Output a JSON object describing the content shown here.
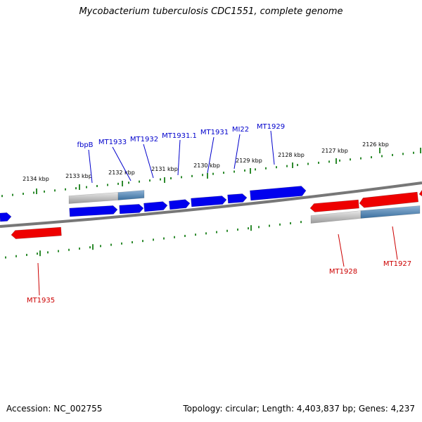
{
  "title": "Mycobacterium tuberculosis CDC1551, complete genome",
  "footer": {
    "accession": "Accession: NC_002755",
    "topology": "Topology: circular; Length: 4,403,837 bp; Genes: 4,237"
  },
  "colors": {
    "forward_gene": "#0000ee",
    "reverse_gene": "#ee0000",
    "tick": "#2e8b2e",
    "backbone": "#777777",
    "label_forward": "#0000cc",
    "label_reverse": "#cc0000"
  },
  "scale": {
    "unit": "kbp",
    "ticks": [
      {
        "kbp": 2126,
        "label": "2126 kbp"
      },
      {
        "kbp": 2127,
        "label": "2127 kbp"
      },
      {
        "kbp": 2128,
        "label": "2128 kbp"
      },
      {
        "kbp": 2129,
        "label": "2129 kbp"
      },
      {
        "kbp": 2130,
        "label": "2130 kbp"
      },
      {
        "kbp": 2131,
        "label": "2131 kbp"
      },
      {
        "kbp": 2132,
        "label": "2132 kbp"
      },
      {
        "kbp": 2133,
        "label": "2133 kbp"
      },
      {
        "kbp": 2134,
        "label": "2134 kbp"
      }
    ]
  },
  "genes_forward": [
    {
      "label": "fbpB"
    },
    {
      "label": "MT1933"
    },
    {
      "label": "MT1932"
    },
    {
      "label": "MT1931.1"
    },
    {
      "label": "MT1931"
    },
    {
      "label": "MI22"
    },
    {
      "label": "MT1929"
    }
  ],
  "genes_reverse": [
    {
      "label": "MT1935"
    },
    {
      "label": "MT1928"
    },
    {
      "label": "MT1927"
    }
  ]
}
